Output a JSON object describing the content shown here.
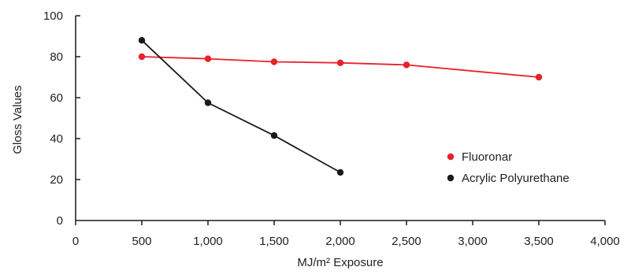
{
  "chart_data": {
    "type": "line",
    "title": "",
    "xlabel": "MJ/m² Exposure",
    "ylabel": "Gloss Values",
    "xlim": [
      0,
      4000
    ],
    "ylim": [
      0,
      100
    ],
    "x_ticks": [
      0,
      500,
      1000,
      1500,
      2000,
      2500,
      3000,
      3500,
      4000
    ],
    "x_tick_labels": [
      "0",
      "500",
      "1,000",
      "1,500",
      "2,000",
      "2,500",
      "3,000",
      "3,500",
      "4,000"
    ],
    "y_ticks": [
      0,
      20,
      40,
      60,
      80,
      100
    ],
    "y_tick_labels": [
      "0",
      "20",
      "40",
      "60",
      "80",
      "100"
    ],
    "grid": false,
    "legend_position": "right",
    "series": [
      {
        "name": "Fluoronar",
        "color": "#e8212a",
        "x": [
          500,
          1000,
          1500,
          2000,
          2500,
          3500
        ],
        "y": [
          80,
          79,
          77.5,
          77,
          76,
          70
        ]
      },
      {
        "name": "Acrylic Polyurethane",
        "color": "#1a1a1a",
        "x": [
          500,
          1000,
          1500,
          2000
        ],
        "y": [
          88,
          57.5,
          41.5,
          23.5
        ]
      }
    ]
  }
}
